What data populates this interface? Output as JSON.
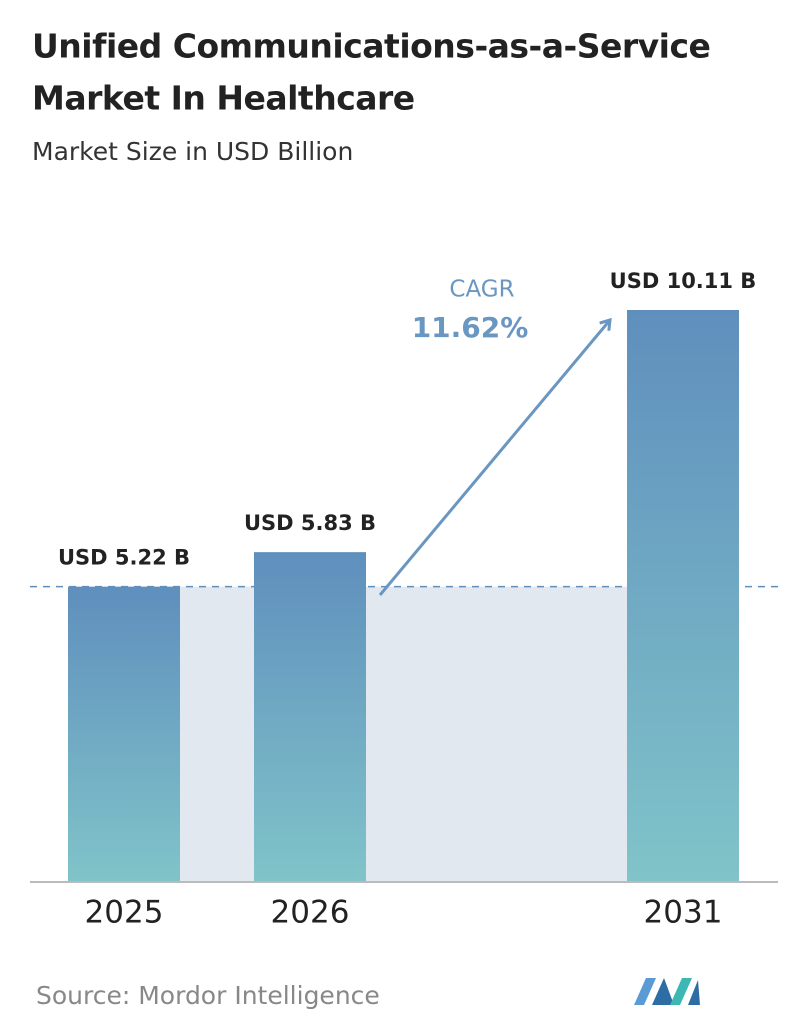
{
  "chart_data": {
    "type": "bar",
    "title_lines": [
      "Unified Communications-as-a-Service",
      "Market In Healthcare"
    ],
    "subtitle": "Market Size in USD Billion",
    "categories": [
      "2025",
      "2026",
      "2031"
    ],
    "values": [
      5.22,
      5.83,
      10.11
    ],
    "value_labels": [
      "USD 5.22 B",
      "USD 5.83 B",
      "USD 10.11 B"
    ],
    "annotation": {
      "label": "CAGR",
      "value": "11.62%"
    },
    "source": "Source:  Mordor Intelligence"
  }
}
